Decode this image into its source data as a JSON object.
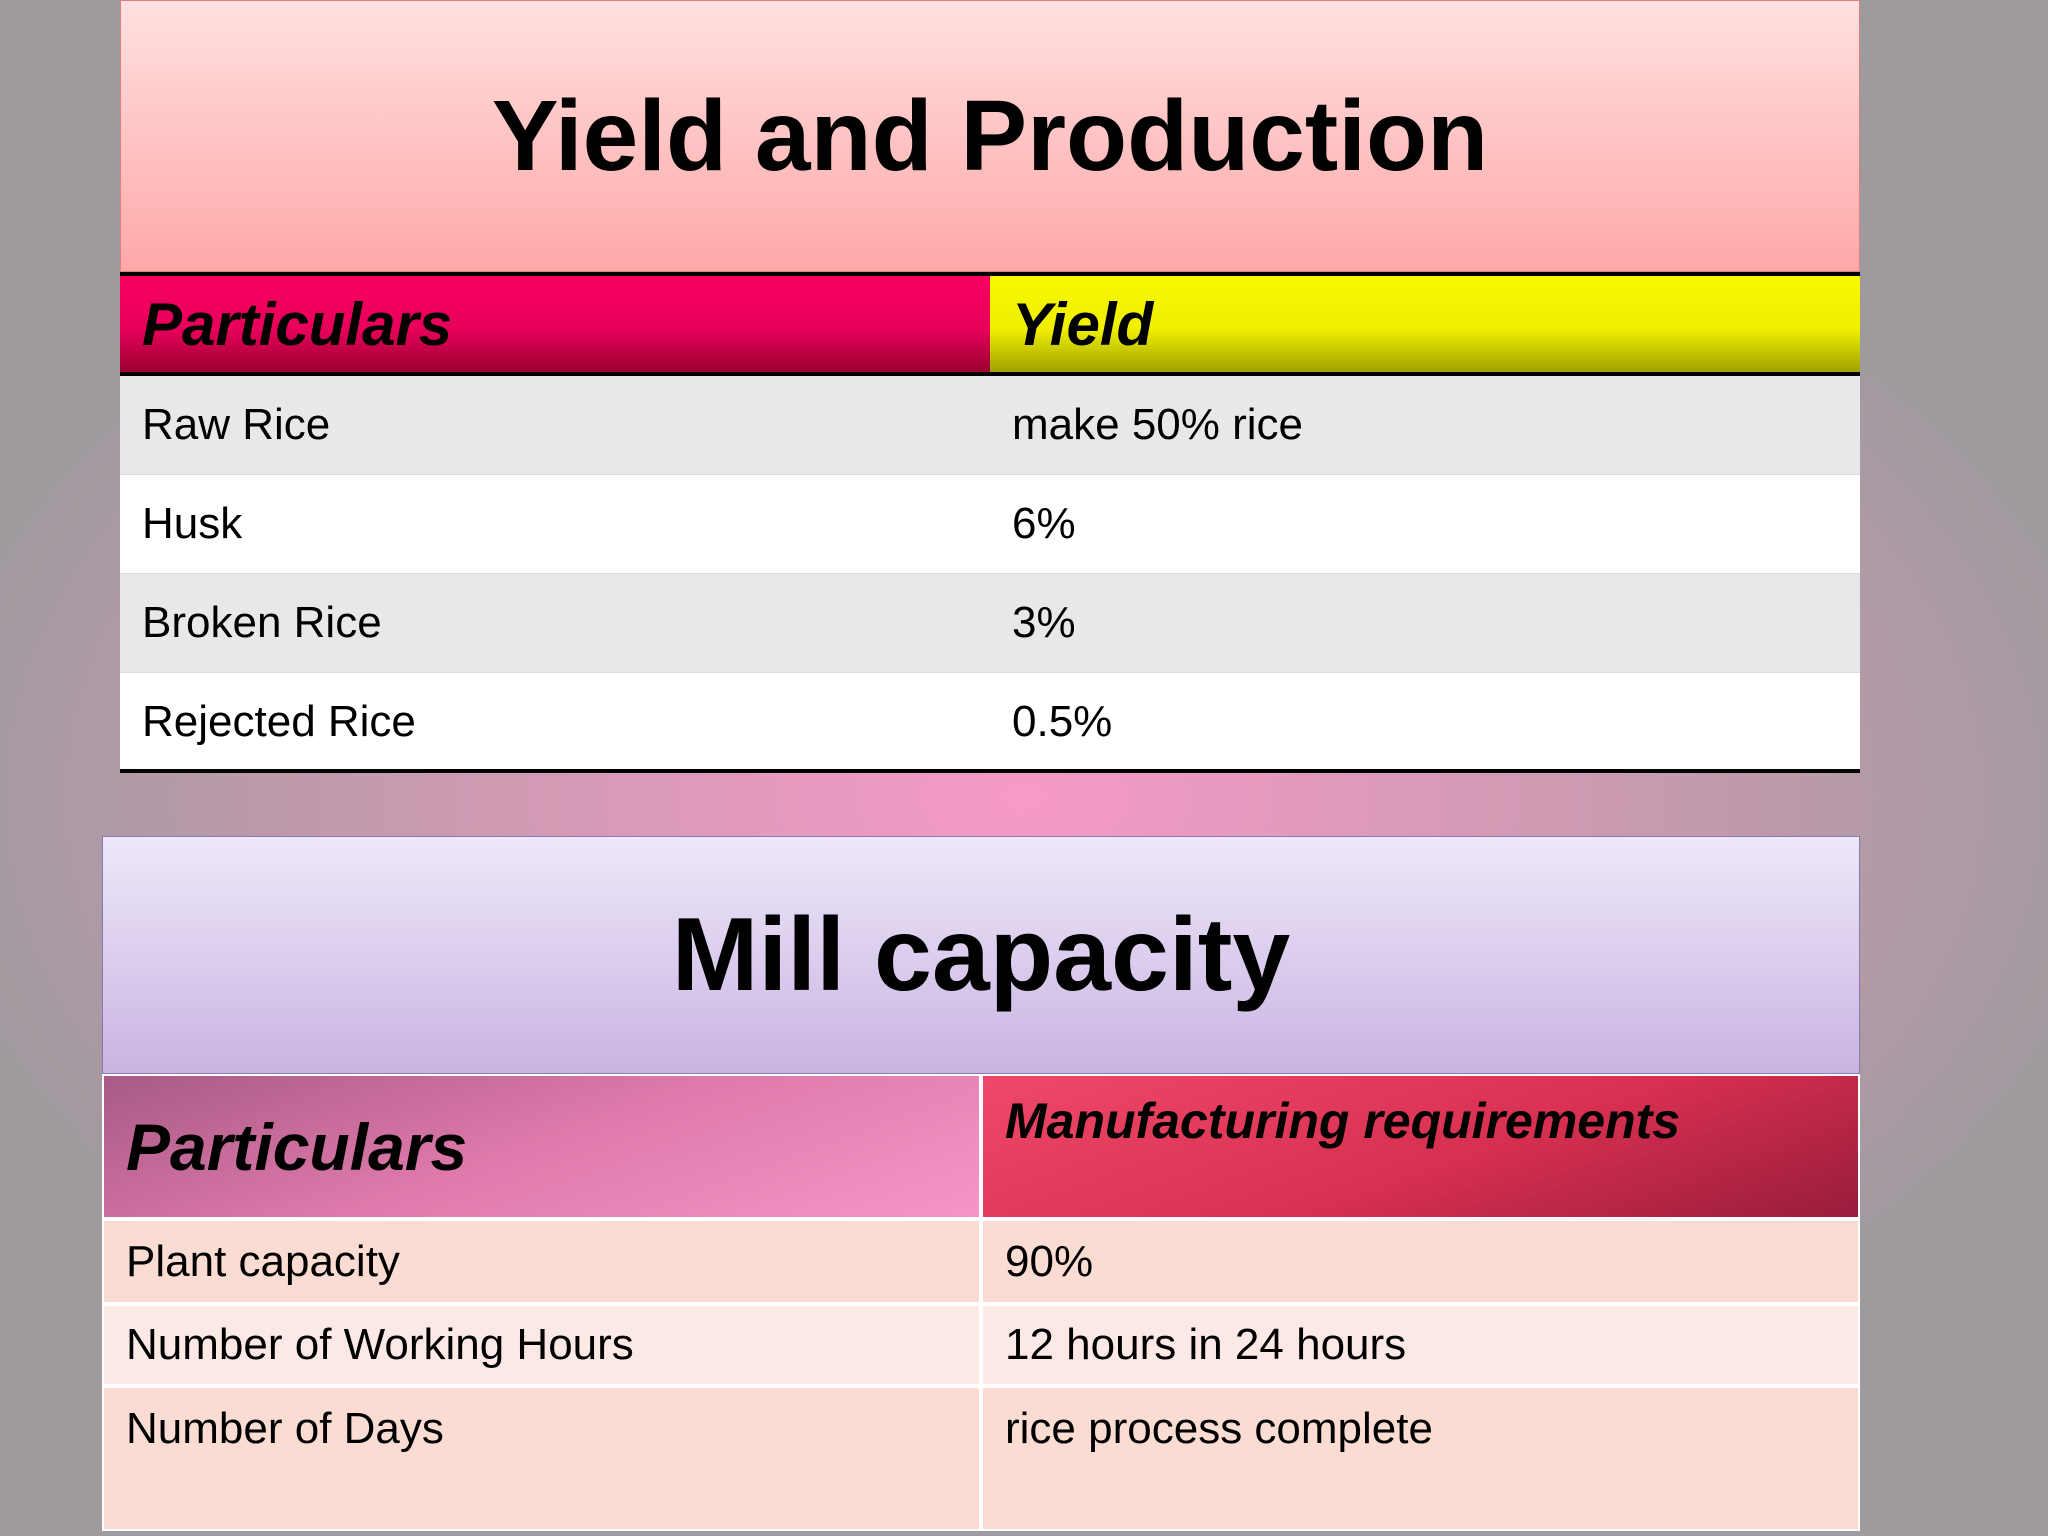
{
  "sections": [
    {
      "title": "Yield and Production",
      "table": {
        "header": [
          "Particulars",
          "Yield"
        ],
        "rows": [
          [
            "Raw Rice",
            "make 50% rice"
          ],
          [
            "Husk",
            "6%"
          ],
          [
            "Broken Rice",
            "3%"
          ],
          [
            "Rejected Rice",
            "0.5%"
          ]
        ]
      }
    },
    {
      "title": "Mill capacity",
      "table": {
        "header": [
          "Particulars",
          "Manufacturing requirements"
        ],
        "rows": [
          [
            "Plant capacity",
            "90%"
          ],
          [
            "Number of Working Hours",
            "12 hours in 24 hours"
          ],
          [
            "Number of Days",
            "rice process complete"
          ]
        ]
      }
    }
  ]
}
